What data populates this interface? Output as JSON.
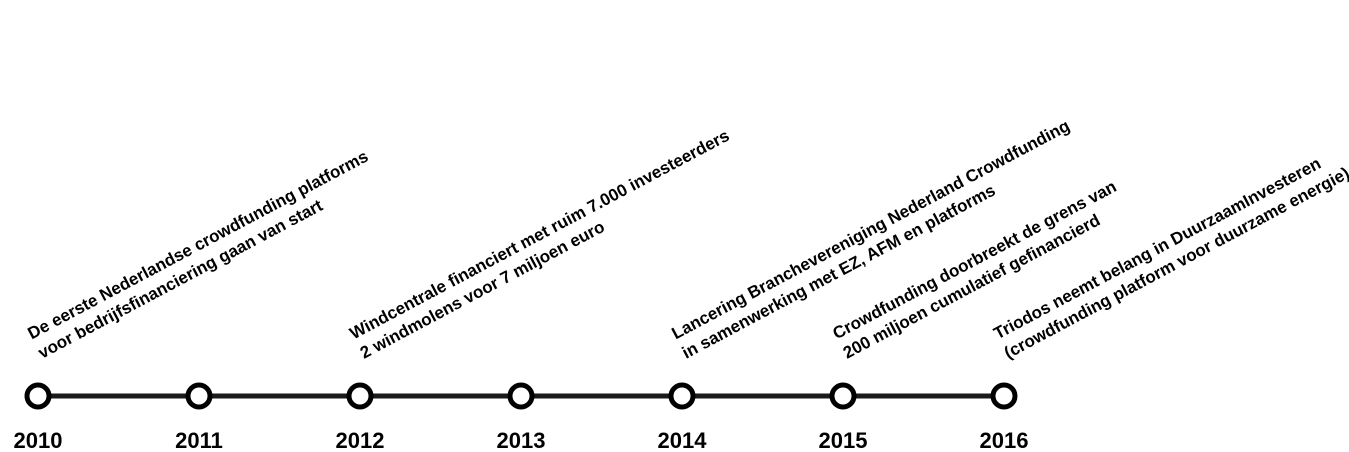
{
  "timeline": {
    "line_color": "#1a1a1a",
    "node_fill": "#ffffff",
    "node_stroke": "#000000",
    "years": [
      "2010",
      "2011",
      "2012",
      "2013",
      "2014",
      "2015",
      "2016"
    ],
    "events": [
      {
        "year": "2010",
        "lines": [
          "De eerste Nederlandse crowdfunding platforms",
          "voor bedrijfsfinanciering gaan van start"
        ]
      },
      {
        "year": "2012",
        "lines": [
          "Windcentrale financiert met ruim 7.000 investeerders",
          "2 windmolens voor 7 miljoen euro"
        ]
      },
      {
        "year": "2014",
        "lines": [
          "Lancering Branchevereniging Nederland Crowdfunding",
          "in samenwerking met EZ, AFM en platforms"
        ]
      },
      {
        "year": "2015",
        "lines": [
          "Crowdfunding doorbreekt de grens van",
          "200 miljoen cumulatief gefinancierd"
        ]
      },
      {
        "year": "2016",
        "lines": [
          "Triodos neemt belang in DuurzaamInvesteren",
          "(crowdfunding platform voor duurzame energie)"
        ]
      }
    ]
  }
}
